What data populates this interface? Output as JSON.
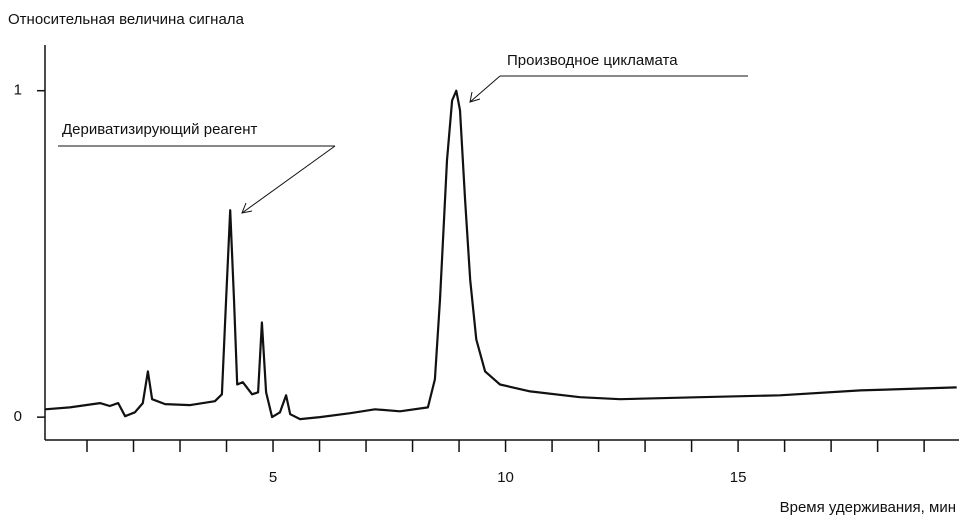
{
  "chart_data": {
    "type": "line",
    "y_label": "Относительная величина сигнала",
    "x_label": "Время удерживания, мин",
    "annotations": [
      "Производное цикламата",
      "Дериватизирующий реагент"
    ],
    "xlim": [
      0,
      19.75
    ],
    "ylim": [
      -0.07,
      1.14
    ],
    "xticks": [
      5,
      10,
      15
    ],
    "x_minor_ticks": [
      1,
      2,
      3,
      4,
      6,
      7,
      8,
      9,
      11,
      12,
      13,
      14,
      16,
      17,
      18,
      19
    ],
    "yticks": [
      0,
      1
    ],
    "color": "#111111",
    "x": [
      0.1,
      0.63,
      1.28,
      1.49,
      1.67,
      1.82,
      2.03,
      2.2,
      2.31,
      2.4,
      2.68,
      3.22,
      3.75,
      3.9,
      3.99,
      4.08,
      4.16,
      4.23,
      4.35,
      4.55,
      4.68,
      4.76,
      4.85,
      4.98,
      5.15,
      5.28,
      5.37,
      5.58,
      6.01,
      6.66,
      7.19,
      7.73,
      8.33,
      8.48,
      8.59,
      8.74,
      8.85,
      8.94,
      9.02,
      9.13,
      9.24,
      9.37,
      9.56,
      9.88,
      10.53,
      11.6,
      12.46,
      14.18,
      15.9,
      17.63,
      19.7
    ],
    "values": [
      0.024,
      0.03,
      0.043,
      0.034,
      0.043,
      0.003,
      0.015,
      0.043,
      0.14,
      0.055,
      0.04,
      0.037,
      0.049,
      0.07,
      0.36,
      0.634,
      0.36,
      0.1,
      0.107,
      0.07,
      0.076,
      0.29,
      0.076,
      0,
      0.015,
      0.067,
      0.009,
      -0.006,
      0,
      0.012,
      0.024,
      0.018,
      0.03,
      0.116,
      0.36,
      0.787,
      0.97,
      1.0,
      0.94,
      0.665,
      0.42,
      0.238,
      0.14,
      0.1,
      0.079,
      0.061,
      0.055,
      0.061,
      0.067,
      0.082,
      0.091
    ]
  }
}
